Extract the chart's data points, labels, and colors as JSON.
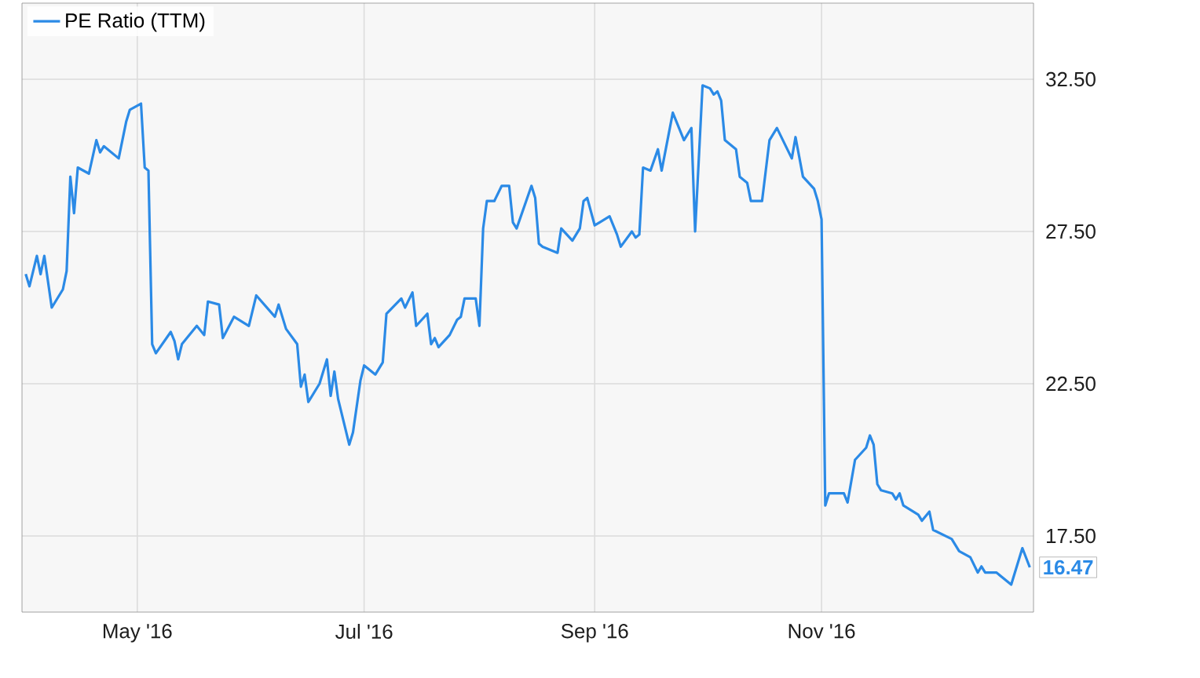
{
  "chart_data": {
    "type": "line",
    "x": [
      "2016-04-01",
      "2016-04-02",
      "2016-04-04",
      "2016-04-05",
      "2016-04-06",
      "2016-04-08",
      "2016-04-11",
      "2016-04-12",
      "2016-04-13",
      "2016-04-14",
      "2016-04-15",
      "2016-04-18",
      "2016-04-20",
      "2016-04-21",
      "2016-04-22",
      "2016-04-26",
      "2016-04-28",
      "2016-04-29",
      "2016-05-02",
      "2016-05-03",
      "2016-05-04",
      "2016-05-05",
      "2016-05-06",
      "2016-05-10",
      "2016-05-11",
      "2016-05-12",
      "2016-05-13",
      "2016-05-17",
      "2016-05-19",
      "2016-05-20",
      "2016-05-23",
      "2016-05-24",
      "2016-05-27",
      "2016-05-31",
      "2016-06-02",
      "2016-06-07",
      "2016-06-08",
      "2016-06-10",
      "2016-06-13",
      "2016-06-14",
      "2016-06-15",
      "2016-06-16",
      "2016-06-19",
      "2016-06-21",
      "2016-06-22",
      "2016-06-23",
      "2016-06-24",
      "2016-06-27",
      "2016-06-28",
      "2016-06-30",
      "2016-07-01",
      "2016-07-04",
      "2016-07-06",
      "2016-07-07",
      "2016-07-11",
      "2016-07-12",
      "2016-07-14",
      "2016-07-15",
      "2016-07-18",
      "2016-07-19",
      "2016-07-20",
      "2016-07-21",
      "2016-07-24",
      "2016-07-26",
      "2016-07-27",
      "2016-07-28",
      "2016-07-29",
      "2016-07-31",
      "2016-08-01",
      "2016-08-02",
      "2016-08-03",
      "2016-08-05",
      "2016-08-07",
      "2016-08-09",
      "2016-08-10",
      "2016-08-11",
      "2016-08-15",
      "2016-08-16",
      "2016-08-17",
      "2016-08-18",
      "2016-08-22",
      "2016-08-23",
      "2016-08-26",
      "2016-08-28",
      "2016-08-29",
      "2016-08-30",
      "2016-09-01",
      "2016-09-05",
      "2016-09-07",
      "2016-09-08",
      "2016-09-11",
      "2016-09-12",
      "2016-09-13",
      "2016-09-14",
      "2016-09-16",
      "2016-09-18",
      "2016-09-19",
      "2016-09-22",
      "2016-09-25",
      "2016-09-27",
      "2016-09-28",
      "2016-09-30",
      "2016-10-02",
      "2016-10-03",
      "2016-10-04",
      "2016-10-05",
      "2016-10-06",
      "2016-10-09",
      "2016-10-10",
      "2016-10-12",
      "2016-10-13",
      "2016-10-16",
      "2016-10-18",
      "2016-10-20",
      "2016-10-24",
      "2016-10-25",
      "2016-10-27",
      "2016-10-30",
      "2016-10-31",
      "2016-11-01",
      "2016-11-02",
      "2016-11-03",
      "2016-11-07",
      "2016-11-08",
      "2016-11-10",
      "2016-11-13",
      "2016-11-14",
      "2016-11-15",
      "2016-11-16",
      "2016-11-17",
      "2016-11-20",
      "2016-11-21",
      "2016-11-22",
      "2016-11-23",
      "2016-11-27",
      "2016-11-28",
      "2016-11-30",
      "2016-12-01",
      "2016-12-06",
      "2016-12-08",
      "2016-12-11",
      "2016-12-13",
      "2016-12-14",
      "2016-12-15",
      "2016-12-18",
      "2016-12-20",
      "2016-12-22",
      "2016-12-25",
      "2016-12-27"
    ],
    "series": [
      {
        "name": "PE Ratio (TTM)",
        "color": "#2b8ae6",
        "values": [
          26.1,
          25.7,
          26.7,
          26.1,
          26.7,
          25.0,
          25.6,
          26.2,
          29.3,
          28.1,
          29.6,
          29.4,
          30.5,
          30.1,
          30.3,
          29.9,
          31.1,
          31.5,
          31.7,
          29.6,
          29.5,
          23.8,
          23.5,
          24.2,
          23.9,
          23.3,
          23.8,
          24.4,
          24.1,
          25.2,
          25.1,
          24.0,
          24.7,
          24.4,
          25.4,
          24.7,
          25.1,
          24.3,
          23.8,
          22.4,
          22.8,
          21.9,
          22.5,
          23.3,
          22.1,
          22.9,
          22.0,
          20.5,
          20.9,
          22.6,
          23.1,
          22.8,
          23.2,
          24.8,
          25.3,
          25.0,
          25.5,
          24.4,
          24.8,
          23.8,
          24.0,
          23.7,
          24.1,
          24.6,
          24.7,
          25.3,
          25.3,
          25.3,
          24.4,
          27.6,
          28.5,
          28.5,
          29.0,
          29.0,
          27.8,
          27.6,
          29.0,
          28.6,
          27.1,
          27.0,
          26.8,
          27.6,
          27.2,
          27.6,
          28.5,
          28.6,
          27.7,
          28.0,
          27.4,
          27.0,
          27.5,
          27.3,
          27.4,
          29.6,
          29.5,
          30.2,
          29.5,
          31.4,
          30.5,
          30.9,
          27.5,
          32.3,
          32.2,
          32.0,
          32.1,
          31.8,
          30.5,
          30.2,
          29.3,
          29.1,
          28.5,
          28.5,
          30.5,
          30.9,
          29.9,
          30.6,
          29.3,
          28.9,
          28.5,
          27.9,
          18.5,
          18.9,
          18.9,
          18.6,
          20.0,
          20.4,
          20.8,
          20.5,
          19.2,
          19.0,
          18.9,
          18.7,
          18.9,
          18.5,
          18.2,
          18.0,
          18.3,
          17.7,
          17.4,
          17.0,
          16.8,
          16.3,
          16.5,
          16.3,
          16.3,
          16.1,
          15.9,
          17.1,
          16.47
        ]
      }
    ],
    "xlim": [
      "2016-03-31",
      "2016-12-28"
    ],
    "xticks": [
      {
        "value": "2016-05-01",
        "label": "May '16"
      },
      {
        "value": "2016-07-01",
        "label": "Jul '16"
      },
      {
        "value": "2016-09-01",
        "label": "Sep '16"
      },
      {
        "value": "2016-11-01",
        "label": "Nov '16"
      }
    ],
    "ylim": [
      15,
      35
    ],
    "yticks": [
      {
        "value": 17.5,
        "label": "17.50"
      },
      {
        "value": 22.5,
        "label": "22.50"
      },
      {
        "value": 27.5,
        "label": "27.50"
      },
      {
        "value": 32.5,
        "label": "32.50"
      }
    ],
    "grid": true,
    "legend": "top left",
    "marker": "none",
    "line_style": "solid",
    "annotations": [
      {
        "text": "16.47",
        "x": "2016-12-27",
        "y": 16.47
      }
    ]
  }
}
